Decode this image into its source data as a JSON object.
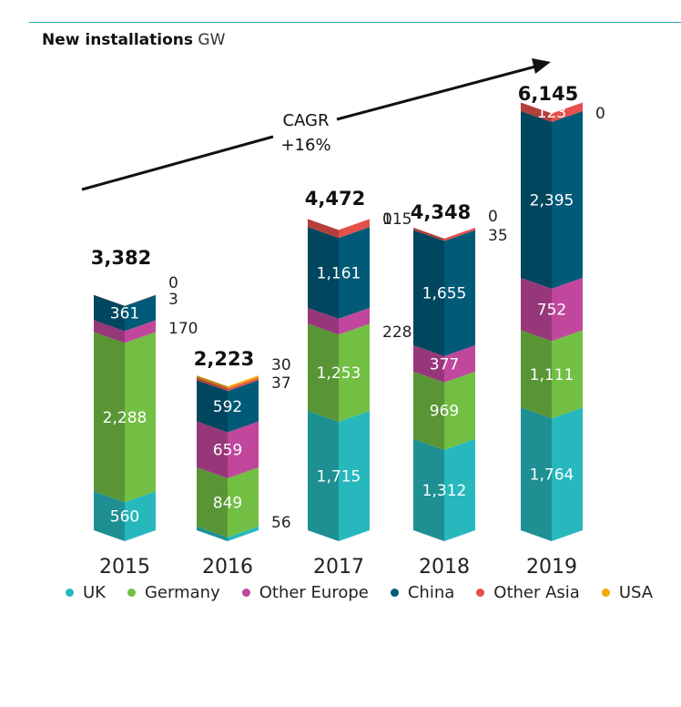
{
  "header": {
    "title": "New installations",
    "unit": "GW"
  },
  "annotation": {
    "line1": "CAGR",
    "line2": "+16%"
  },
  "colors": {
    "UK": "#27b8bd",
    "Germany": "#72bf44",
    "Other Europe": "#c0479c",
    "China": "#005a78",
    "Other Asia": "#e5504a",
    "USA": "#f2a900"
  },
  "chart_data": {
    "type": "bar",
    "stacked": true,
    "categories": [
      "2015",
      "2016",
      "2017",
      "2018",
      "2019"
    ],
    "totals": [
      "3,382",
      "2,223",
      "4,472",
      "4,348",
      "6,145"
    ],
    "series": [
      {
        "name": "UK",
        "values": [
          560,
          56,
          1715,
          1312,
          1764
        ],
        "labels": [
          "560",
          "56",
          "1,715",
          "1,312",
          "1,764"
        ]
      },
      {
        "name": "Germany",
        "values": [
          2288,
          849,
          1253,
          969,
          1111
        ],
        "labels": [
          "2,288",
          "849",
          "1,253",
          "969",
          "1,111"
        ]
      },
      {
        "name": "Other Europe",
        "values": [
          170,
          659,
          228,
          377,
          752
        ],
        "labels": [
          "170",
          "659",
          "228",
          "377",
          "752"
        ]
      },
      {
        "name": "China",
        "values": [
          361,
          592,
          1161,
          1655,
          2395
        ],
        "labels": [
          "361",
          "592",
          "1,161",
          "1,655",
          "2,395"
        ]
      },
      {
        "name": "Other Asia",
        "values": [
          3,
          37,
          115,
          35,
          123
        ],
        "labels": [
          "3",
          "37",
          "115",
          "35",
          "123"
        ]
      },
      {
        "name": "USA",
        "values": [
          0,
          30,
          0,
          0,
          0
        ],
        "labels": [
          "0",
          "30",
          "0",
          "0",
          "0"
        ]
      }
    ],
    "legend_position": "bottom"
  }
}
